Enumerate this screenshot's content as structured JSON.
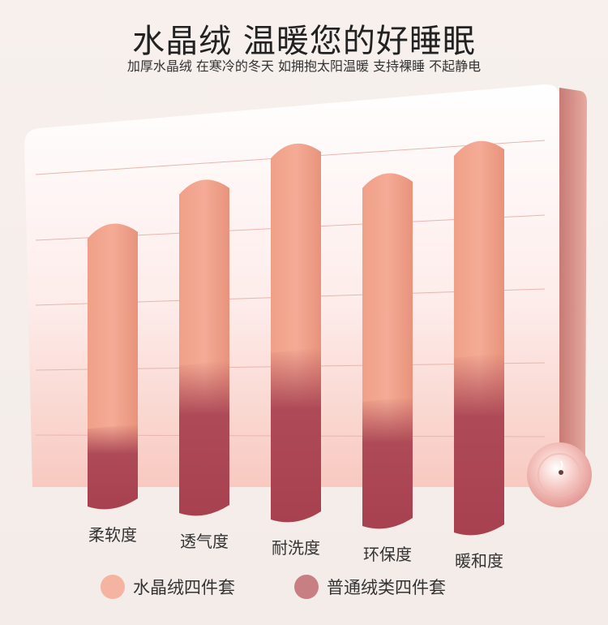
{
  "header": {
    "title": "水晶绒 温暖您的好睡眠",
    "subtitle": "加厚水晶绒 在寒冷的冬天 如拥抱太阳温暖 支持裸睡 不起静电"
  },
  "colors": {
    "series_a": "#f0a189",
    "series_b": "#ae4a58",
    "legend_a": "#f5b3a1",
    "legend_b": "#c87f84"
  },
  "chart_data": {
    "type": "bar",
    "categories": [
      "柔软度",
      "透气度",
      "耐洗度",
      "环保度",
      "暖和度"
    ],
    "series": [
      {
        "name": "水晶绒四件套",
        "values": [
          72,
          85,
          96,
          90,
          100
        ]
      },
      {
        "name": "普通绒类四件套",
        "values": [
          20,
          38,
          43,
          32,
          45
        ]
      }
    ],
    "title": "水晶绒 温暖您的好睡眠",
    "xlabel": "",
    "ylabel": "",
    "ylim": [
      0,
      100
    ],
    "grid": true,
    "legend": "bottom"
  }
}
